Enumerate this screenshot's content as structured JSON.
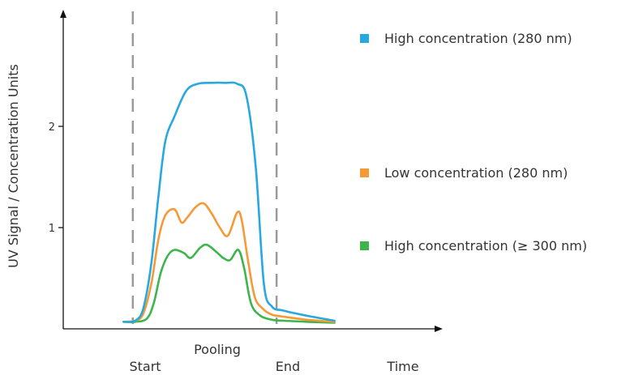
{
  "chart_data": {
    "type": "line",
    "title": "",
    "xlabel": "Time",
    "ylabel": "UV Signal / Concentration Units",
    "xlim": [
      0,
      15
    ],
    "ylim": [
      0,
      2.4
    ],
    "y_ticks": [
      1,
      2
    ],
    "y_tick_labels": [
      "1",
      "2"
    ],
    "grid": false,
    "legend_position": "right",
    "markers": [
      {
        "label": "Start",
        "x": 3
      },
      {
        "label": "End",
        "x": 9.2
      }
    ],
    "region_label": "Pooling",
    "series": [
      {
        "name": "High concentration (280 nm)",
        "color": "#29a8e0",
        "x": [
          2.6,
          3.1,
          3.45,
          3.8,
          4.1,
          4.4,
          4.8,
          5.3,
          5.8,
          6.4,
          7.0,
          7.5,
          7.9,
          8.3,
          8.65,
          9.0,
          9.5,
          10.5,
          11.7
        ],
        "y": [
          0.07,
          0.08,
          0.2,
          0.65,
          1.3,
          1.85,
          2.1,
          2.35,
          2.42,
          2.43,
          2.43,
          2.42,
          2.3,
          1.6,
          0.45,
          0.22,
          0.18,
          0.13,
          0.08
        ]
      },
      {
        "name": "Low concentration (280 nm)",
        "color": "#f59a36",
        "x": [
          2.6,
          3.1,
          3.45,
          3.8,
          4.1,
          4.4,
          4.8,
          5.1,
          5.35,
          5.7,
          6.05,
          6.4,
          6.75,
          7.1,
          7.5,
          7.7,
          7.95,
          8.25,
          8.6,
          9.0,
          9.5,
          10.5,
          11.7
        ],
        "y": [
          0.07,
          0.08,
          0.15,
          0.45,
          0.88,
          1.12,
          1.18,
          1.05,
          1.1,
          1.2,
          1.24,
          1.14,
          1.0,
          0.92,
          1.15,
          1.07,
          0.7,
          0.32,
          0.2,
          0.14,
          0.12,
          0.09,
          0.07
        ]
      },
      {
        "name": "High concentration (≥ 300 nm)",
        "color": "#3db54a",
        "x": [
          2.6,
          3.1,
          3.6,
          3.9,
          4.2,
          4.5,
          4.8,
          5.2,
          5.5,
          5.9,
          6.2,
          6.6,
          6.9,
          7.2,
          7.55,
          7.8,
          8.1,
          8.5,
          9.0,
          9.5,
          10.5,
          11.7
        ],
        "y": [
          0.07,
          0.07,
          0.1,
          0.25,
          0.55,
          0.72,
          0.78,
          0.75,
          0.7,
          0.8,
          0.83,
          0.76,
          0.7,
          0.68,
          0.78,
          0.6,
          0.25,
          0.13,
          0.09,
          0.08,
          0.07,
          0.06
        ]
      }
    ]
  }
}
